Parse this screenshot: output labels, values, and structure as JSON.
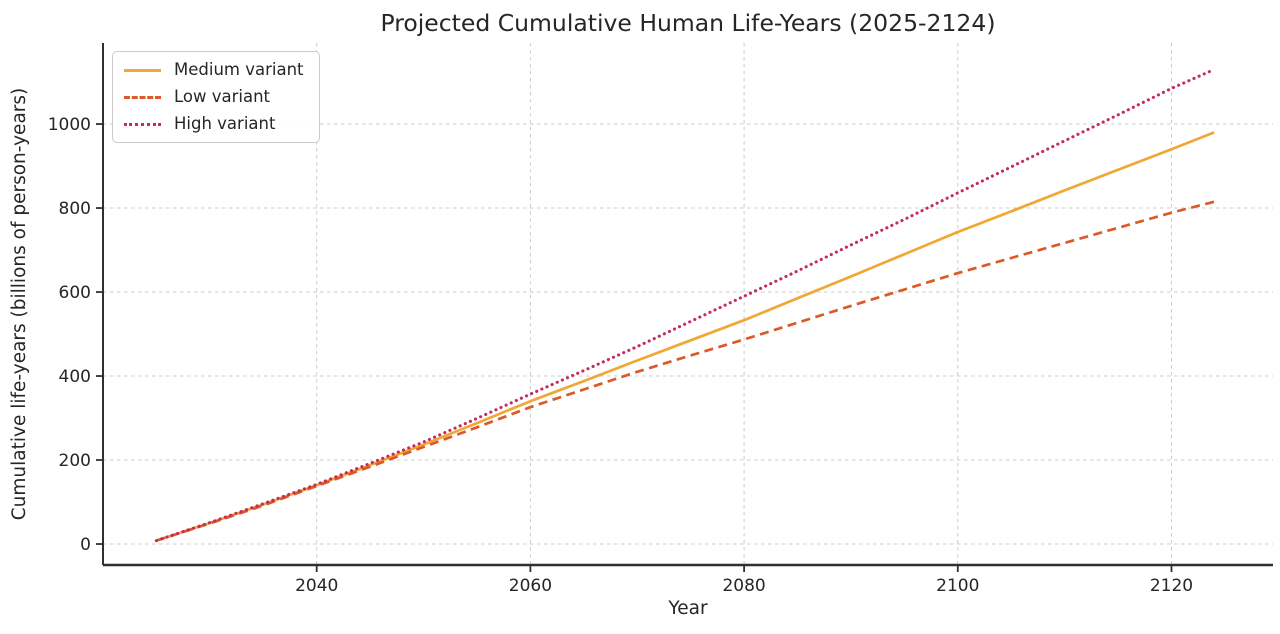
{
  "chart_data": {
    "type": "line",
    "title": "Projected Cumulative Human Life-Years (2025-2124)",
    "xlabel": "Year",
    "ylabel": "Cumulative life-years (billions of person-years)",
    "xlim": [
      2020,
      2129.5
    ],
    "ylim": [
      -50,
      1193
    ],
    "xticks": [
      2040,
      2060,
      2080,
      2100,
      2120
    ],
    "yticks": [
      0,
      200,
      400,
      600,
      800,
      1000
    ],
    "grid": true,
    "grid_style": "dashed",
    "legend_position": "upper-left",
    "x": [
      2025,
      2030,
      2035,
      2040,
      2045,
      2050,
      2055,
      2060,
      2065,
      2070,
      2075,
      2080,
      2085,
      2090,
      2095,
      2100,
      2105,
      2110,
      2115,
      2120,
      2124
    ],
    "series": [
      {
        "name": "Medium variant",
        "linestyle": "solid",
        "color": "#F1A736",
        "values": [
          8,
          50,
          94,
          140,
          188,
          237,
          288,
          340,
          388,
          437,
          485,
          533,
          585,
          637,
          690,
          743,
          792,
          842,
          891,
          940,
          980
        ]
      },
      {
        "name": "Low variant",
        "linestyle": "dashed",
        "color": "#DB5A28",
        "values": [
          8,
          49,
          92,
          138,
          184,
          231,
          278,
          326,
          368,
          410,
          449,
          487,
          527,
          567,
          606,
          645,
          681,
          717,
          753,
          789,
          815
        ]
      },
      {
        "name": "High variant",
        "linestyle": "dotted",
        "color": "#C62A5E",
        "values": [
          8,
          51,
          96,
          142,
          192,
          243,
          299,
          357,
          413,
          470,
          530,
          590,
          650,
          712,
          773,
          836,
          898,
          960,
          1022,
          1085,
          1130
        ]
      }
    ],
    "colors": {
      "background": "#ffffff",
      "grid": "#cccccc",
      "spine": "#303030",
      "text": "#262626",
      "legend_border": "#cccccc"
    }
  }
}
